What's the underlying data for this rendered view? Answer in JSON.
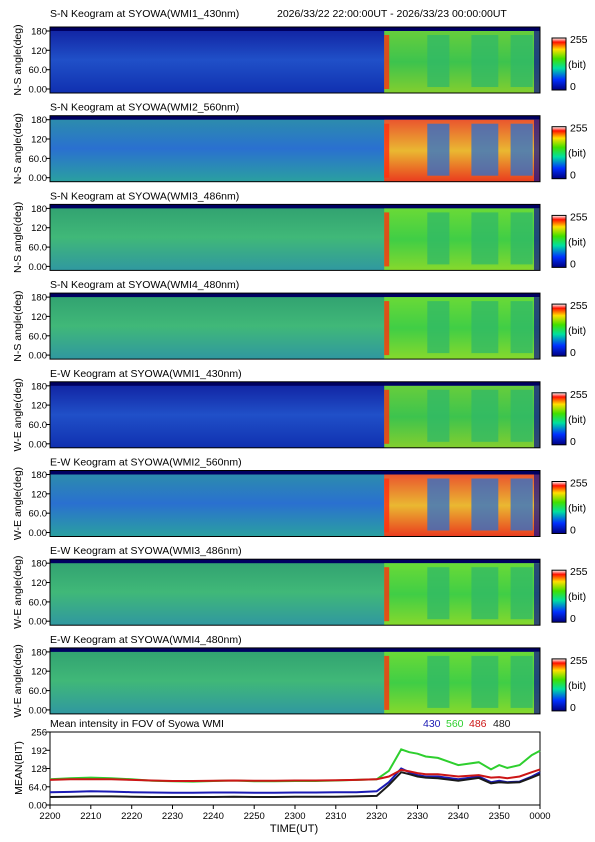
{
  "header": {
    "time_range": "2026/33/22 22:00:00UT - 2026/33/23 00:00:00UT"
  },
  "panels": [
    {
      "title": "S-N Keogram at SYOWA(WMI1_430nm)",
      "ylabel": "N-S angle(deg)",
      "profile": "blue"
    },
    {
      "title": "S-N Keogram at SYOWA(WMI2_560nm)",
      "ylabel": "N-S angle(deg)",
      "profile": "green_bright"
    },
    {
      "title": "S-N Keogram at SYOWA(WMI3_486nm)",
      "ylabel": "N-S angle(deg)",
      "profile": "green"
    },
    {
      "title": "S-N Keogram at SYOWA(WMI4_480nm)",
      "ylabel": "N-S angle(deg)",
      "profile": "green"
    },
    {
      "title": "E-W Keogram at SYOWA(WMI1_430nm)",
      "ylabel": "W-E angle(deg)",
      "profile": "blue"
    },
    {
      "title": "E-W Keogram at SYOWA(WMI2_560nm)",
      "ylabel": "W-E angle(deg)",
      "profile": "green_bright"
    },
    {
      "title": "E-W Keogram at SYOWA(WMI3_486nm)",
      "ylabel": "W-E angle(deg)",
      "profile": "green"
    },
    {
      "title": "E-W Keogram at SYOWA(WMI4_480nm)",
      "ylabel": "W-E angle(deg)",
      "profile": "green"
    }
  ],
  "keogram_yticks": [
    "180",
    "120",
    "60.0",
    "0.00"
  ],
  "colorbar": {
    "max_label": "255",
    "unit_label": "(bit)",
    "min_label": "0"
  },
  "chart_data": {
    "type": "line",
    "title": "Mean intensity in FOV of Syowa WMI",
    "xlabel": "TIME(UT)",
    "ylabel": "MEAN(BIT)",
    "ylim": [
      0,
      256
    ],
    "yticks": [
      "256",
      "192",
      "128",
      "64.0",
      "0.00"
    ],
    "xlim": [
      0,
      120
    ],
    "xticks": [
      "2200",
      "2210",
      "2220",
      "2230",
      "2240",
      "2250",
      "2300",
      "2310",
      "2320",
      "2330",
      "2340",
      "2350",
      "0000"
    ],
    "x": [
      0,
      5,
      10,
      15,
      20,
      25,
      30,
      35,
      40,
      45,
      50,
      55,
      60,
      65,
      70,
      75,
      80,
      83,
      86,
      88,
      90,
      92,
      95,
      100,
      105,
      108,
      110,
      112,
      115,
      118,
      120
    ],
    "series": [
      {
        "name": "430",
        "color": "#1a1ab4",
        "values": [
          45,
          46,
          48,
          47,
          45,
          44,
          43,
          43,
          44,
          44,
          43,
          43,
          44,
          44,
          45,
          45,
          48,
          80,
          128,
          115,
          105,
          100,
          100,
          90,
          100,
          80,
          85,
          80,
          82,
          100,
          115
        ]
      },
      {
        "name": "560",
        "color": "#2ecf2e",
        "values": [
          90,
          94,
          96,
          94,
          90,
          85,
          83,
          82,
          84,
          86,
          83,
          83,
          84,
          84,
          86,
          88,
          90,
          120,
          195,
          185,
          180,
          170,
          165,
          140,
          150,
          125,
          140,
          130,
          140,
          175,
          190
        ]
      },
      {
        "name": "486",
        "color": "#cc1515",
        "values": [
          88,
          90,
          90,
          90,
          88,
          86,
          84,
          84,
          85,
          86,
          85,
          85,
          86,
          86,
          87,
          88,
          90,
          100,
          123,
          118,
          112,
          108,
          108,
          100,
          105,
          96,
          98,
          94,
          100,
          115,
          125
        ]
      },
      {
        "name": "480",
        "color": "#1a1a1a",
        "values": [
          28,
          29,
          30,
          30,
          29,
          28,
          28,
          28,
          28,
          29,
          28,
          28,
          29,
          29,
          29,
          30,
          32,
          70,
          115,
          108,
          100,
          96,
          94,
          85,
          95,
          76,
          80,
          78,
          80,
          96,
          108
        ]
      }
    ]
  }
}
